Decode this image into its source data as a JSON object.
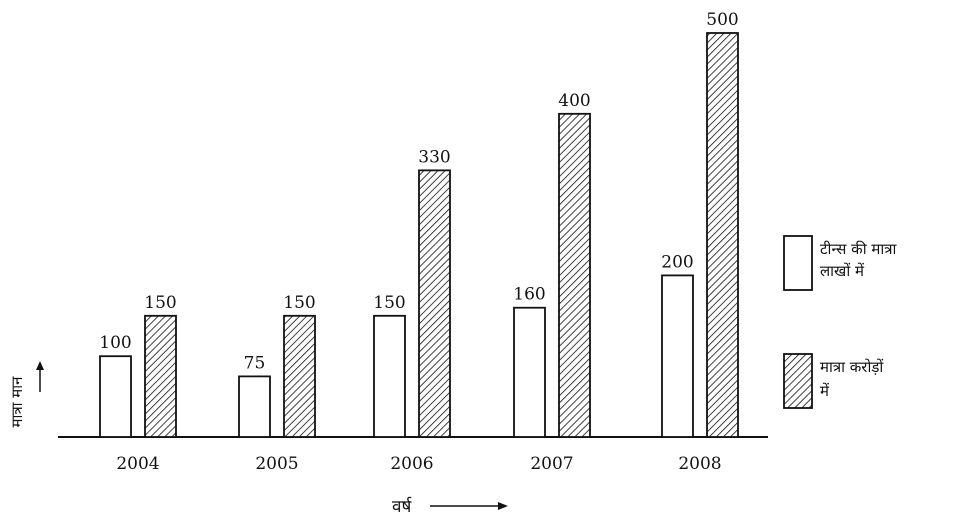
{
  "chart_data": {
    "type": "bar",
    "title": "",
    "categories": [
      "2004",
      "2005",
      "2006",
      "2007",
      "2008"
    ],
    "series": [
      {
        "name": "टीन्स की मात्रा लाखों में",
        "pattern": "plain",
        "values": [
          100,
          75,
          150,
          160,
          200
        ]
      },
      {
        "name": "मात्रा करोड़ों में",
        "pattern": "hatched",
        "values": [
          150,
          150,
          330,
          400,
          500
        ]
      }
    ],
    "data_labels": [
      [
        "100",
        "75",
        "150",
        "160",
        "200"
      ],
      [
        "150",
        "150",
        "330",
        "400",
        "500"
      ]
    ],
    "xlabel": "वर्ष",
    "ylabel": "मात्रा मान",
    "ylim": [
      0,
      500
    ],
    "grid": false,
    "legend": {
      "placement": "right",
      "entries": [
        {
          "line1": "टीन्स की मात्रा",
          "line2": "लाखों में"
        },
        {
          "line1": "मात्रा करोड़ों",
          "line2": "में"
        }
      ]
    },
    "colors": {
      "bar_stroke": "#111111",
      "bar_fill_plain": "#ffffff",
      "hatch": "#111111",
      "background": "#ffffff"
    }
  }
}
